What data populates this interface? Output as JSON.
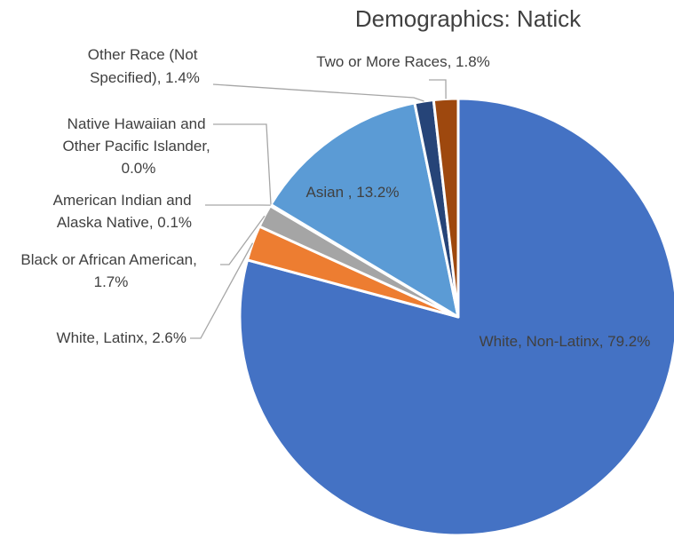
{
  "chart_data": {
    "type": "pie",
    "title": "Demographics: Natick",
    "start_angle_deg": 0,
    "direction": "clockwise",
    "legend": "none",
    "slices": [
      {
        "name": "White, Non-Latinx",
        "value": 79.2,
        "label": "White, Non-Latinx, 79.2%",
        "color": "#4472C4"
      },
      {
        "name": "White, Latinx",
        "value": 2.6,
        "label": "White, Latinx, 2.6%",
        "color": "#ED7D31"
      },
      {
        "name": "Black or African American",
        "value": 1.7,
        "label": "Black or African American, 1.7%",
        "color": "#A5A5A5"
      },
      {
        "name": "American Indian and Alaska Native",
        "value": 0.1,
        "label": "American Indian and Alaska Native, 0.1%",
        "color": "#FFC000"
      },
      {
        "name": "Native Hawaiian and Other Pacific Islander",
        "value": 0.0,
        "label": "Native Hawaiian and Other Pacific Islander, 0.0%",
        "color": "#5B9BD5"
      },
      {
        "name": "Asian",
        "value": 13.2,
        "label": "Asian , 13.2%",
        "color": "#5B9BD5"
      },
      {
        "name": "Other Race (Not Specified)",
        "value": 1.4,
        "label": "Other Race (Not Specified), 1.4%",
        "color": "#264478"
      },
      {
        "name": "Two or More Races",
        "value": 1.8,
        "label": "Two or More Races, 1.8%",
        "color": "#9E480E"
      }
    ]
  }
}
